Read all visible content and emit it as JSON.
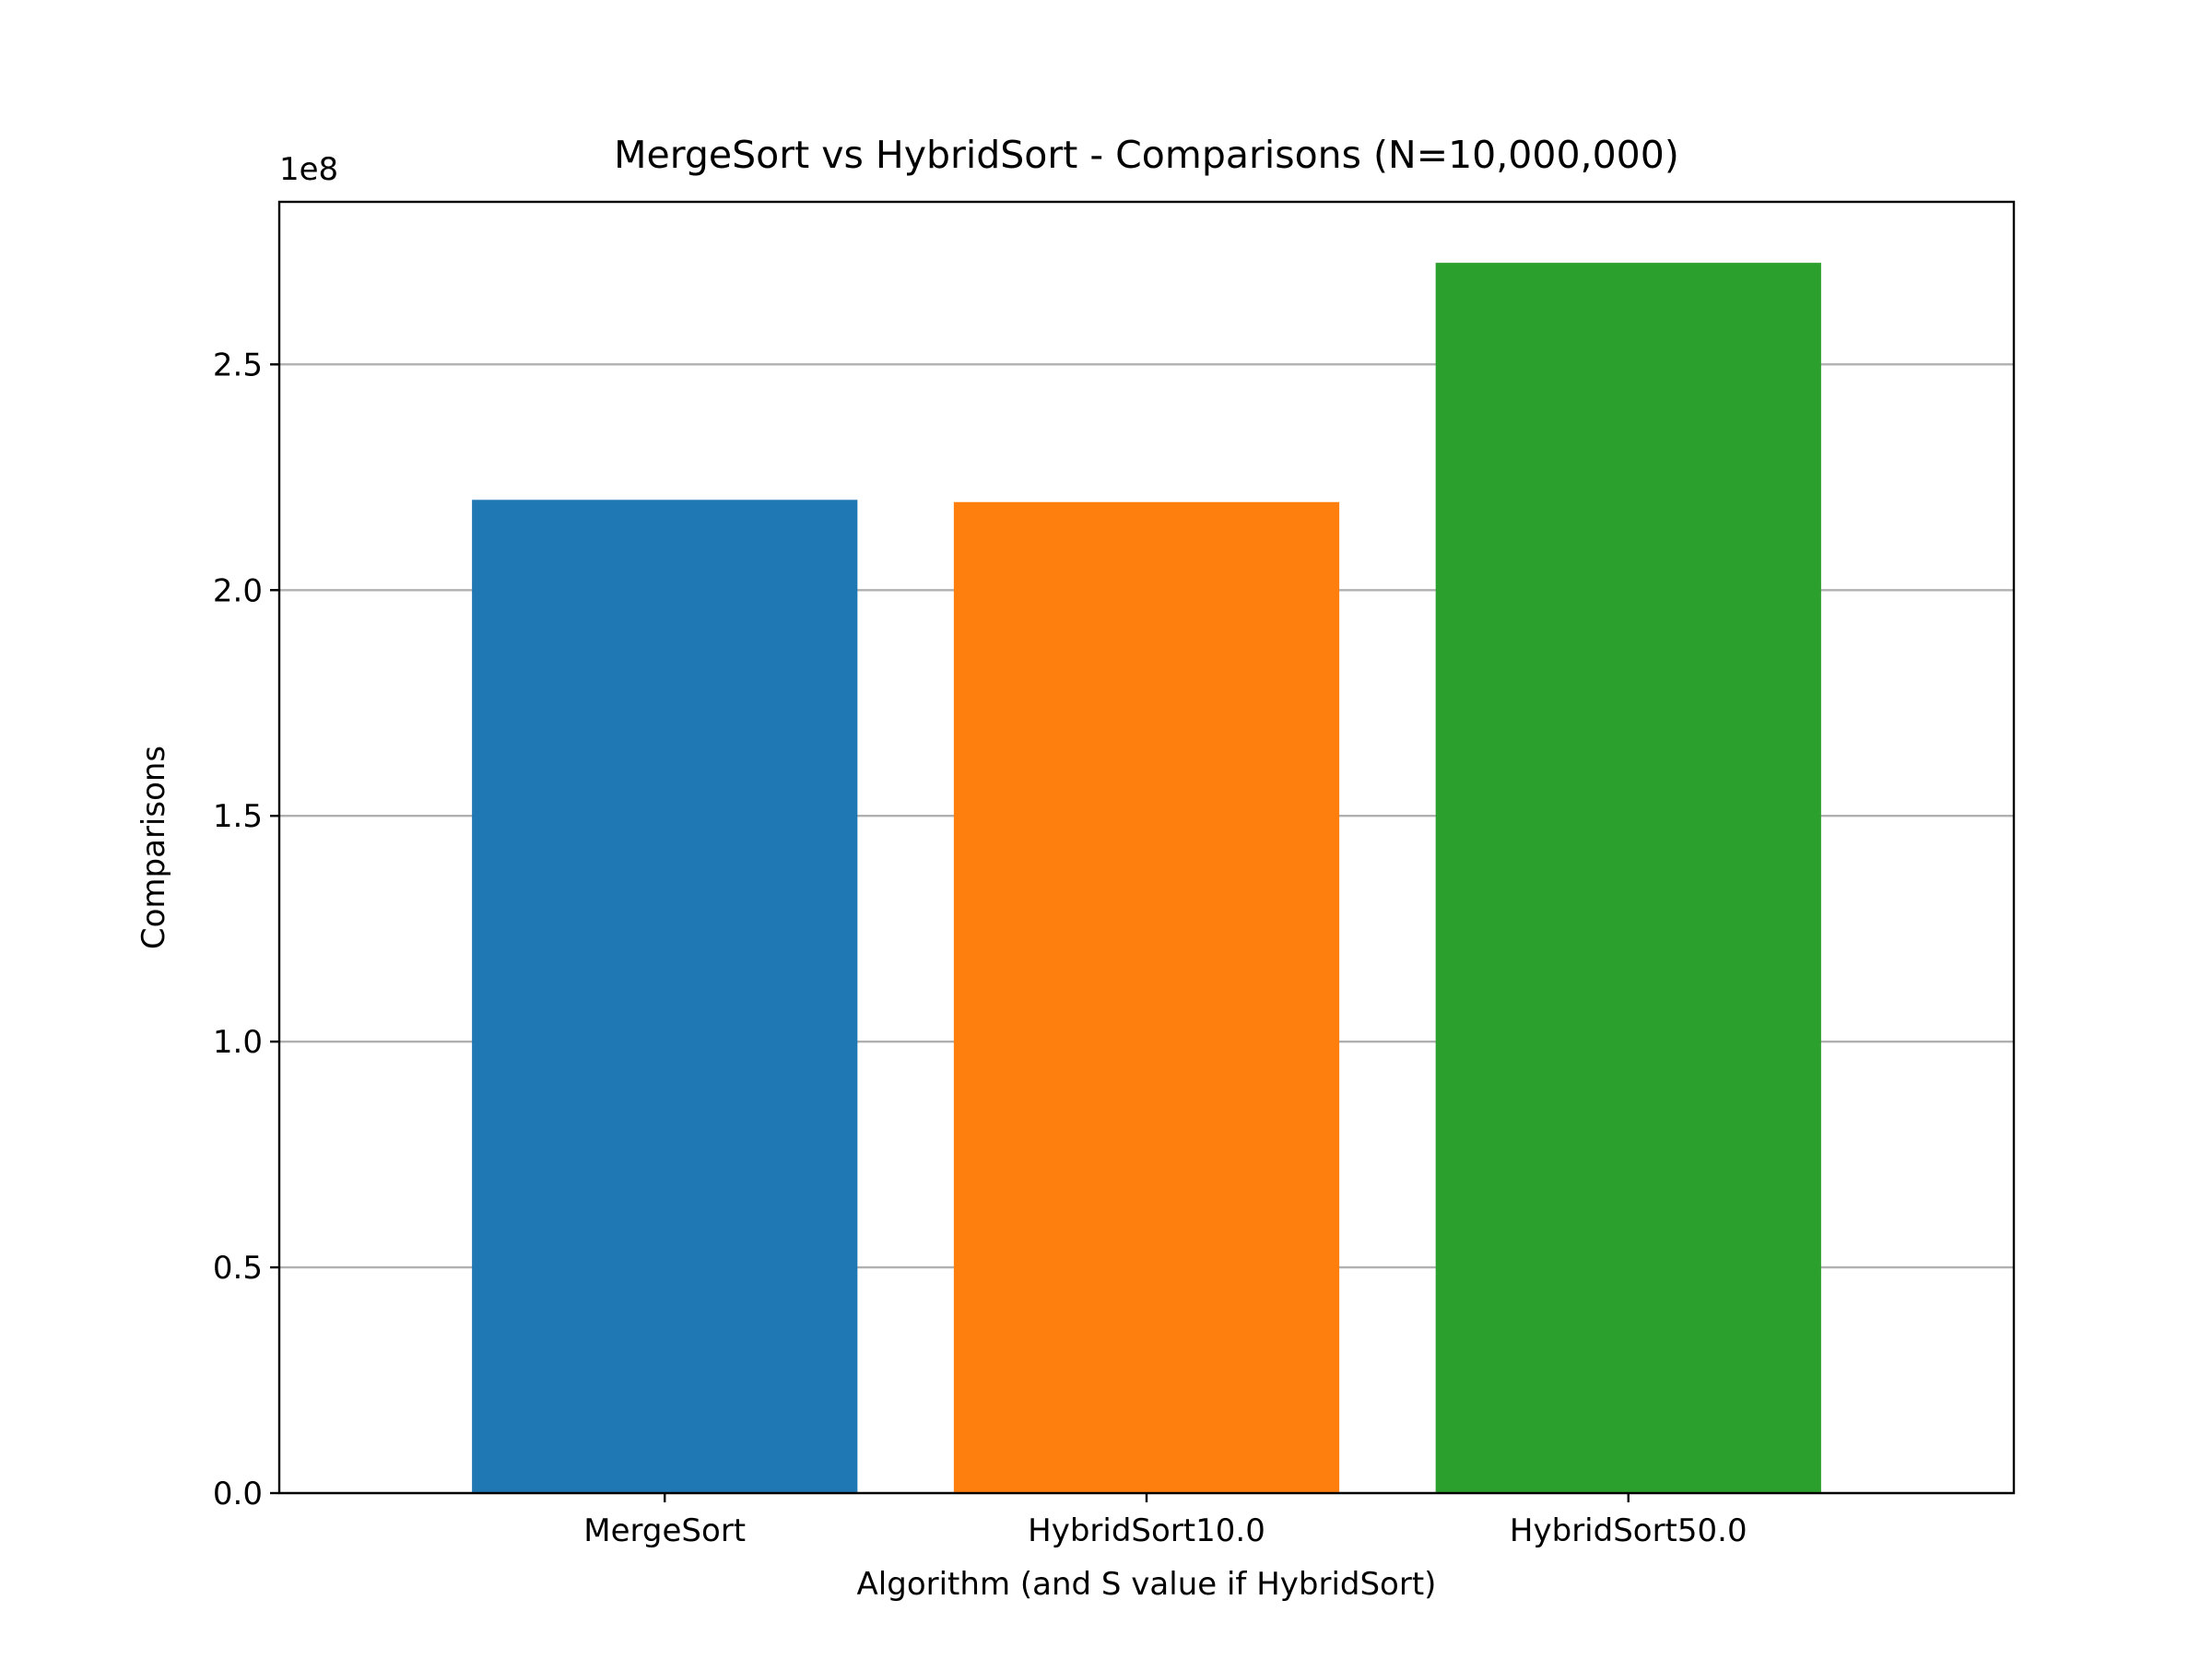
{
  "chart_data": {
    "type": "bar",
    "title": "MergeSort vs HybridSort - Comparisons (N=10,000,000)",
    "xlabel": "Algorithm (and S value if HybridSort)",
    "ylabel": "Comparisons",
    "offset_label": "1e8",
    "categories": [
      "MergeSort",
      "HybridSort10.0",
      "HybridSort50.0"
    ],
    "values": [
      220000000,
      219500000,
      272500000
    ],
    "colors": [
      "#1f77b4",
      "#ff7f0e",
      "#2ca02c"
    ],
    "ylim": [
      0,
      286000000
    ],
    "yticks": [
      0,
      50000000,
      100000000,
      150000000,
      200000000,
      250000000
    ],
    "ytick_labels": [
      "0.0",
      "0.5",
      "1.0",
      "1.5",
      "2.0",
      "2.5"
    ],
    "grid": "y",
    "grid_color": "#b0b0b0",
    "legend": "none"
  }
}
